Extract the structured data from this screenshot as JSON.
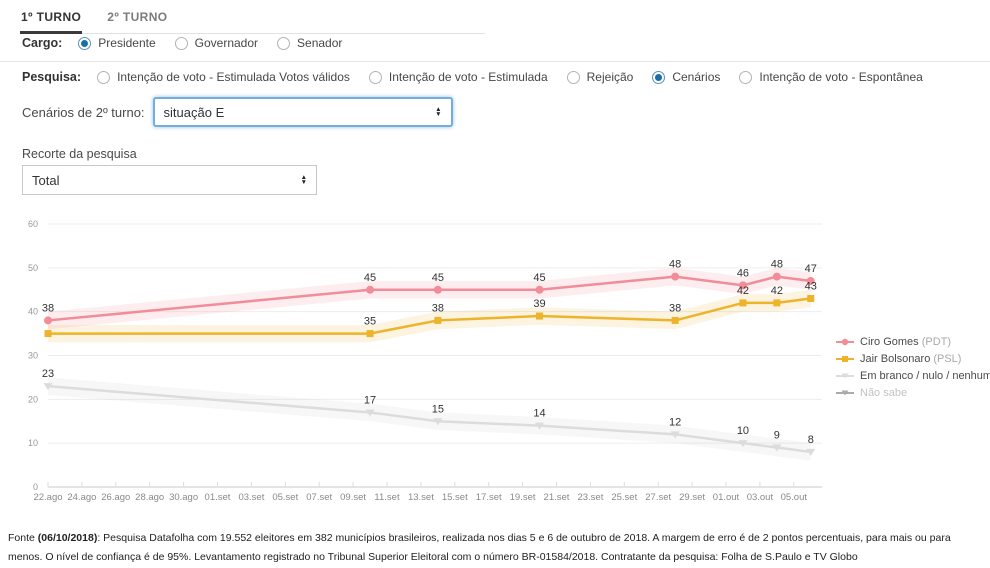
{
  "tabs": {
    "items": [
      {
        "label": "1º TURNO",
        "active": true
      },
      {
        "label": "2º TURNO",
        "active": false
      }
    ]
  },
  "filters": {
    "cargo_label": "Cargo:",
    "cargo_options": [
      {
        "label": "Presidente",
        "selected": true
      },
      {
        "label": "Governador",
        "selected": false
      },
      {
        "label": "Senador",
        "selected": false
      }
    ],
    "pesquisa_label": "Pesquisa:",
    "pesquisa_options": [
      {
        "label": "Intenção de voto - Estimulada Votos válidos",
        "selected": false
      },
      {
        "label": "Intenção de voto - Estimulada",
        "selected": false
      },
      {
        "label": "Rejeição",
        "selected": false
      },
      {
        "label": "Cenários",
        "selected": true
      },
      {
        "label": "Intenção de voto - Espontânea",
        "selected": false
      }
    ],
    "cenario_label": "Cenários de 2º turno:",
    "cenario_value": "situação E",
    "recorte_label": "Recorte da pesquisa",
    "recorte_value": "Total"
  },
  "chart_data": {
    "type": "line",
    "x_tick_labels": [
      "22.ago",
      "24.ago",
      "26.ago",
      "28.ago",
      "30.ago",
      "01.set",
      "03.set",
      "05.set",
      "07.set",
      "09.set",
      "11.set",
      "13.set",
      "15.set",
      "17.set",
      "19.set",
      "21.set",
      "23.set",
      "25.set",
      "27.set",
      "29.set",
      "01.out",
      "03.out",
      "05.out"
    ],
    "y_ticks": [
      0,
      10,
      20,
      30,
      40,
      50,
      60
    ],
    "ylim": [
      0,
      60
    ],
    "margin_of_error_pp": 2,
    "x_days": [
      0,
      19,
      23,
      29,
      37,
      41,
      43,
      45
    ],
    "series": [
      {
        "name": "Ciro Gomes",
        "party": "(PDT)",
        "color": "#f18d99",
        "band": "rgba(241,141,153,0.16)",
        "marker": "circle",
        "disabled": false,
        "values": [
          38,
          45,
          45,
          45,
          48,
          46,
          48,
          47
        ],
        "labels": [
          "38",
          "45",
          "45",
          "45",
          "48",
          "46",
          "48",
          "47"
        ]
      },
      {
        "name": "Jair Bolsonaro",
        "party": "(PSL)",
        "color": "#edb32a",
        "band": "rgba(237,179,42,0.14)",
        "marker": "square",
        "disabled": false,
        "values": [
          35,
          35,
          38,
          39,
          38,
          42,
          42,
          43
        ],
        "labels": [
          "",
          "35",
          "38",
          "39",
          "38",
          "42",
          "42",
          "43"
        ]
      },
      {
        "name": "Em branco / nulo / nenhum",
        "party": "",
        "color": "#dcdcdc",
        "band": "rgba(195,195,195,0.14)",
        "marker": "triangle",
        "disabled": false,
        "values": [
          23,
          17,
          15,
          14,
          12,
          10,
          9,
          8
        ],
        "labels": [
          "23",
          "17",
          "15",
          "14",
          "12",
          "10",
          "9",
          "8"
        ]
      },
      {
        "name": "Não sabe",
        "party": "",
        "color": "#ababab",
        "band": "",
        "marker": "triangle",
        "disabled": true,
        "values": [],
        "labels": []
      }
    ],
    "legend_position": "right"
  },
  "footer": {
    "prefix": "Fonte ",
    "date": "(06/10/2018)",
    "text": ": Pesquisa Datafolha com 19.552 eleitores em 382 municípios brasileiros, realizada nos dias 5 e 6 de outubro de 2018. A margem de erro é de 2 pontos percentuais, para mais ou para menos. O nível de confiança é de 95%. Levantamento registrado no Tribunal Superior Eleitoral com o número BR-01584/2018. Contratante da pesquisa: Folha de S.Paulo e TV Globo"
  }
}
